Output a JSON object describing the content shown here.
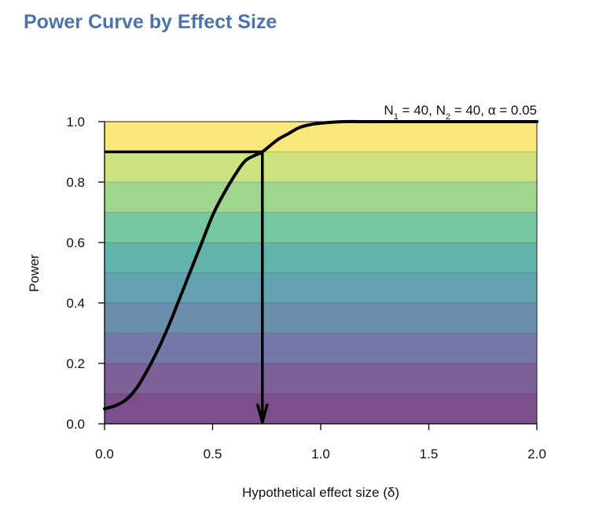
{
  "page": {
    "title": "Power Curve by Effect Size"
  },
  "chart_data": {
    "type": "line",
    "title": "",
    "annotation": {
      "n1_label": "N",
      "n1_sub": "1",
      "n1_value": " = 40, ",
      "n2_label": "N",
      "n2_sub": "2",
      "n2_value": " = 40, ",
      "alpha_label": "α = 0.05"
    },
    "xlabel": "Hypothetical effect size (δ)",
    "ylabel": "Power",
    "xlim": [
      0,
      2
    ],
    "ylim": [
      0,
      1
    ],
    "x_ticks": [
      0.0,
      0.5,
      1.0,
      1.5,
      2.0
    ],
    "x_tick_labels": [
      "0.0",
      "0.5",
      "1.0",
      "1.5",
      "2.0"
    ],
    "y_ticks": [
      0.0,
      0.2,
      0.4,
      0.6,
      0.8,
      1.0
    ],
    "y_tick_labels": [
      "0.0",
      "0.2",
      "0.4",
      "0.6",
      "0.8",
      "1.0"
    ],
    "grid": false,
    "background_bands": [
      {
        "from": 0.0,
        "to": 0.1,
        "color": "#7b4f8a"
      },
      {
        "from": 0.1,
        "to": 0.2,
        "color": "#7e6099"
      },
      {
        "from": 0.2,
        "to": 0.3,
        "color": "#7577a8"
      },
      {
        "from": 0.3,
        "to": 0.4,
        "color": "#6a8eac"
      },
      {
        "from": 0.4,
        "to": 0.5,
        "color": "#62a2ae"
      },
      {
        "from": 0.5,
        "to": 0.6,
        "color": "#63b5ab"
      },
      {
        "from": 0.6,
        "to": 0.7,
        "color": "#74c7a0"
      },
      {
        "from": 0.7,
        "to": 0.8,
        "color": "#9ed68e"
      },
      {
        "from": 0.8,
        "to": 0.9,
        "color": "#cde37f"
      },
      {
        "from": 0.9,
        "to": 1.0,
        "color": "#fbe87a"
      }
    ],
    "series": [
      {
        "x": [
          0.0,
          0.05,
          0.1,
          0.15,
          0.2,
          0.25,
          0.3,
          0.35,
          0.4,
          0.45,
          0.5,
          0.55,
          0.6,
          0.65,
          0.7,
          0.73,
          0.8,
          0.85,
          0.9,
          0.95,
          1.0,
          1.1,
          1.2,
          1.4,
          1.6,
          2.0
        ],
        "y": [
          0.05,
          0.06,
          0.08,
          0.12,
          0.18,
          0.25,
          0.33,
          0.42,
          0.51,
          0.6,
          0.69,
          0.76,
          0.82,
          0.87,
          0.89,
          0.9,
          0.94,
          0.96,
          0.98,
          0.99,
          0.995,
          1.0,
          1.0,
          1.0,
          1.0,
          1.0
        ],
        "color": "#000000"
      }
    ],
    "target_power": 0.9,
    "target_effect_size": 0.73
  }
}
